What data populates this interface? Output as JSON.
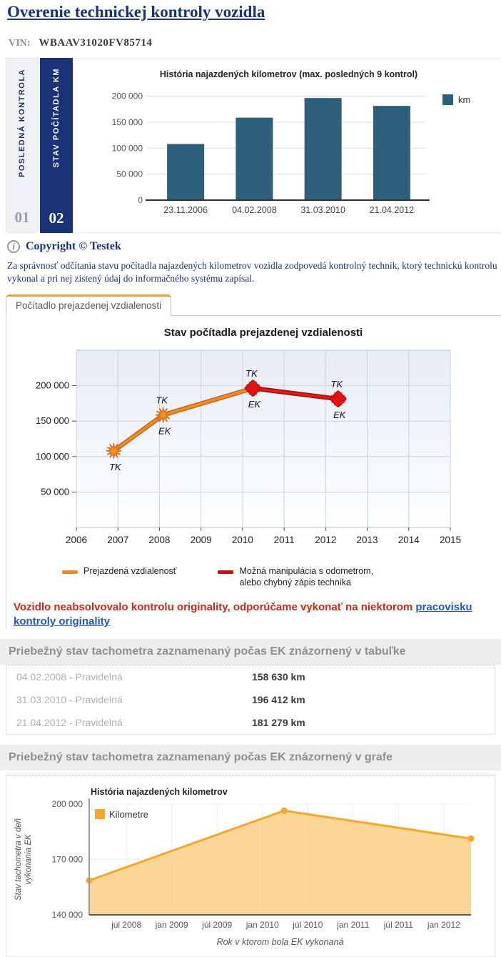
{
  "header": {
    "title": "Overenie technickej kontroly vozidla",
    "vin_label": "VIN:",
    "vin_value": "WBAAV31020FV85714"
  },
  "side_tabs": {
    "items": [
      {
        "label": "POSLEDNÁ KONTROLA",
        "number": "01",
        "active": false
      },
      {
        "label": "STAV POČÍTADLA KM",
        "number": "02",
        "active": true
      }
    ]
  },
  "copyright_label": "Copyright © Testek",
  "disclaimer": "Za správnosť odčítania stavu počítadla najazdených kilometrov vozidla zodpovedá kontrolný technik, ktorý technickú kontrolu vykonal a pri nej zistený údaj do informačného systému zapísal.",
  "odometer_tab_label": "Počítadlo prejazdenej vzdialenosti",
  "warning": {
    "text": "Vozidlo neabsolvovalo kontrolu originality, odporúčame vykonať na niektorom ",
    "link_text": "pracovisku kontroly originality"
  },
  "table_section": {
    "header": "Priebežný stav tachometra zaznamenaný počas EK znázornený v tabuľke",
    "rows": [
      {
        "label": "04.02.2008 - Pravidelná",
        "value": "158 630 km"
      },
      {
        "label": "31.03.2010 - Pravidelná",
        "value": "196 412 km"
      },
      {
        "label": "21.04.2012 - Pravidelná",
        "value": "181 279 km"
      }
    ]
  },
  "graph_section": {
    "header": "Priebežný stav tachometra zaznamenaný počas EK znázornený v grafe"
  },
  "colors": {
    "navy": "#1c3276",
    "bar": "#2e5f7d",
    "orange_line": "#e8862c",
    "orange_marker": "#f6921e",
    "red_line": "#c01010",
    "area_fill": "#fcd28c",
    "area_line": "#f3a72d",
    "warning_red": "#d22616",
    "link_blue": "#2456c4",
    "tab_accent": "#e8a33d"
  },
  "chart_data": [
    {
      "type": "bar",
      "title": "História najazdených kilometrov (max. posledných 9 kontrol)",
      "categories": [
        "23.11.2006",
        "04.02.2008",
        "31.03.2010",
        "21.04.2012"
      ],
      "values": [
        108000,
        158630,
        196412,
        181279
      ],
      "legend": [
        "km"
      ],
      "ylim": [
        0,
        220000
      ],
      "yticks": [
        {
          "label": "0",
          "value": 0
        },
        {
          "label": "50 000",
          "value": 50000
        },
        {
          "label": "100 000",
          "value": 100000
        },
        {
          "label": "150 000",
          "value": 150000
        },
        {
          "label": "200 000",
          "value": 200000
        }
      ],
      "grid": true,
      "legend_position": "right",
      "bar_color": "#2e5f7d"
    },
    {
      "type": "line",
      "title": "Stav počítadla prejazdenej vzdialenosti",
      "xlim": [
        2006,
        2015
      ],
      "xticks": [
        "2006",
        "2007",
        "2008",
        "2009",
        "2010",
        "2011",
        "2012",
        "2013",
        "2014",
        "2015"
      ],
      "ylim": [
        0,
        250000
      ],
      "yticks": [
        {
          "label": "50 000",
          "value": 50000
        },
        {
          "label": "100 000",
          "value": 100000
        },
        {
          "label": "150 000",
          "value": 150000
        },
        {
          "label": "200 000",
          "value": 200000
        }
      ],
      "grid": true,
      "points": [
        {
          "x": 2006.9,
          "value": 108000,
          "top_label": "",
          "bottom_label": "TK",
          "marker": "star"
        },
        {
          "x": 2008.09,
          "value": 158630,
          "top_label": "TK",
          "bottom_label": "EK",
          "marker": "star"
        },
        {
          "x": 2010.25,
          "value": 196412,
          "top_label": "TK",
          "bottom_label": "EK",
          "marker": "star-diamond"
        },
        {
          "x": 2012.3,
          "value": 181279,
          "top_label": "TK",
          "bottom_label": "EK",
          "marker": "star-diamond"
        }
      ],
      "segments": [
        {
          "from": 0,
          "to": 2,
          "color": "orange"
        },
        {
          "from": 2,
          "to": 3,
          "color": "red"
        }
      ],
      "legend": [
        {
          "label": "Prejazdená vzdialenosť",
          "color": "#e8862c"
        },
        {
          "label": "Možná manipulácia s odometrom,\nalebo chybný zápis technika",
          "color": "#c01010"
        }
      ],
      "legend_position": "bottom"
    },
    {
      "type": "area",
      "title": "História najazdených kilometrov",
      "legend": [
        "Kilometre"
      ],
      "ylabel": "Stav tachometra v deň vykonania EK",
      "ylabel_lines": [
        "Stav tachometra v deň",
        "vykonania EK"
      ],
      "xlabel": "Rok v ktorom bola EK vykonaná",
      "ylim": [
        140000,
        200000
      ],
      "yticks": [
        {
          "label": "140 000",
          "value": 140000
        },
        {
          "label": "170 000",
          "value": 170000
        },
        {
          "label": "200 000",
          "value": 200000
        }
      ],
      "xticks": [
        {
          "label": "júl 2008",
          "t": 2008.5
        },
        {
          "label": "jan 2009",
          "t": 2009.0
        },
        {
          "label": "júl 2009",
          "t": 2009.5
        },
        {
          "label": "jan 2010",
          "t": 2010.0
        },
        {
          "label": "júl 2010",
          "t": 2010.5
        },
        {
          "label": "jan 2011",
          "t": 2011.0
        },
        {
          "label": "júl 2011",
          "t": 2011.5
        },
        {
          "label": "jan 2012",
          "t": 2012.0
        }
      ],
      "x": [
        2008.09,
        2010.24,
        2012.3
      ],
      "values": [
        158630,
        196412,
        181279
      ],
      "grid": true,
      "legend_position": "top-left",
      "line_color": "#f3a72d",
      "fill_color": "#fcd28c"
    }
  ]
}
